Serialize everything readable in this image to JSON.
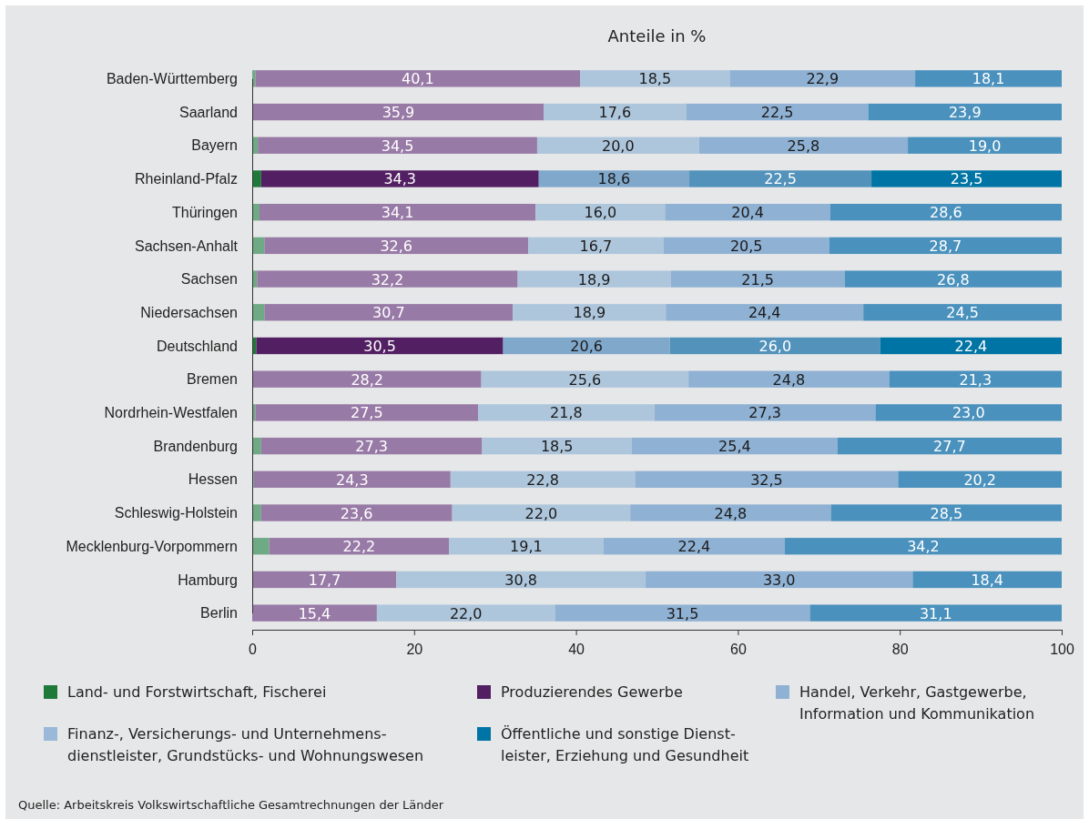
{
  "chart_data": {
    "type": "bar",
    "orientation": "horizontal",
    "stacked": true,
    "title": "Anteile in %",
    "categories": [
      "Baden-Württemberg",
      "Saarland",
      "Bayern",
      "Rheinland-Pfalz",
      "Thüringen",
      "Sachsen-Anhalt",
      "Sachsen",
      "Niedersachsen",
      "Deutschland",
      "Bremen",
      "Nordrhein-Westfalen",
      "Brandenburg",
      "Hessen",
      "Schleswig-Holstein",
      "Mecklenburg-Vorpommern",
      "Hamburg",
      "Berlin"
    ],
    "series": [
      {
        "name": "Land- und Forstwirtschaft, Fischerei",
        "color": "#1f7a3a",
        "colors": [
          "#6eaa84",
          "#6eaa84",
          "#6eaa84",
          "#1f7a3a",
          "#6eaa84",
          "#6eaa84",
          "#6eaa84",
          "#6eaa84",
          "#1f7a3a",
          "#6eaa84",
          "#6eaa84",
          "#6eaa84",
          "#6eaa84",
          "#6eaa84",
          "#6eaa84",
          "#6eaa84",
          "#6eaa84"
        ],
        "values": [
          0.4,
          0.1,
          0.7,
          1.1,
          0.9,
          1.5,
          0.6,
          1.5,
          0.5,
          0.1,
          0.4,
          1.1,
          0.2,
          1.1,
          2.1,
          0.1,
          0.0
        ],
        "value_labels": [
          null,
          null,
          null,
          null,
          null,
          null,
          null,
          null,
          null,
          null,
          null,
          null,
          null,
          null,
          null,
          null,
          null
        ]
      },
      {
        "name": "Produzierendes Gewerbe",
        "color": "#521f63",
        "colors": [
          "#987aa6",
          "#987aa6",
          "#987aa6",
          "#521f63",
          "#987aa6",
          "#987aa6",
          "#987aa6",
          "#987aa6",
          "#521f63",
          "#987aa6",
          "#987aa6",
          "#987aa6",
          "#987aa6",
          "#987aa6",
          "#987aa6",
          "#987aa6",
          "#987aa6"
        ],
        "values": [
          40.1,
          35.9,
          34.5,
          34.3,
          34.1,
          32.6,
          32.2,
          30.7,
          30.5,
          28.2,
          27.5,
          27.3,
          24.3,
          23.6,
          22.2,
          17.7,
          15.4
        ],
        "value_labels": [
          "40,1",
          "35,9",
          "34,5",
          "34,3",
          "34,1",
          "32,6",
          "32,2",
          "30,7",
          "30,5",
          "28,2",
          "27,5",
          "27,3",
          "24,3",
          "23,6",
          "22,2",
          "17,7",
          "15,4"
        ]
      },
      {
        "name": "Handel, Verkehr, Gastgewerbe,\nInformation und Kommunikation",
        "color": "#8fb2d4",
        "colors": [
          "#aec6dc",
          "#aec6dc",
          "#aec6dc",
          "#80a8cb",
          "#aec6dc",
          "#aec6dc",
          "#aec6dc",
          "#aec6dc",
          "#80a8cb",
          "#aec6dc",
          "#aec6dc",
          "#aec6dc",
          "#aec6dc",
          "#aec6dc",
          "#aec6dc",
          "#aec6dc",
          "#aec6dc"
        ],
        "values": [
          18.5,
          17.6,
          20.0,
          18.6,
          16.0,
          16.7,
          18.9,
          18.9,
          20.6,
          25.6,
          21.8,
          18.5,
          22.8,
          22.0,
          19.1,
          30.8,
          22.0
        ],
        "value_labels": [
          "18,5",
          "17,6",
          "20,0",
          "18,6",
          "16,0",
          "16,7",
          "18,9",
          "18,9",
          "20,6",
          "25,6",
          "21,8",
          "18,5",
          "22,8",
          "22,0",
          "19,1",
          "30,8",
          "22,0"
        ]
      },
      {
        "name": "Finanz-, Versicherungs- und Unternehmens-\ndienstleister, Grundstücks- und Wohnungswesen",
        "color": "#9ab9d8",
        "colors": [
          "#8fb1d3",
          "#8fb1d3",
          "#8fb1d3",
          "#5292bb",
          "#8fb1d3",
          "#8fb1d3",
          "#8fb1d3",
          "#8fb1d3",
          "#5292bb",
          "#8fb1d3",
          "#8fb1d3",
          "#8fb1d3",
          "#8fb1d3",
          "#8fb1d3",
          "#8fb1d3",
          "#8fb1d3",
          "#8fb1d3"
        ],
        "values": [
          22.9,
          22.5,
          25.8,
          22.5,
          20.4,
          20.5,
          21.5,
          24.4,
          26.0,
          24.8,
          27.3,
          25.4,
          32.5,
          24.8,
          22.4,
          33.0,
          31.5
        ],
        "value_labels": [
          "22,9",
          "22,5",
          "25,8",
          "22,5",
          "20,4",
          "20,5",
          "21,5",
          "24,4",
          "26,0",
          "24,8",
          "27,3",
          "25,4",
          "32,5",
          "24,8",
          "22,4",
          "33,0",
          "31,5"
        ]
      },
      {
        "name": "Öffentliche und sonstige Dienst-\nleister, Erziehung und Gesundheit",
        "color": "#0075a5",
        "colors": [
          "#4a91bd",
          "#4a91bd",
          "#4a91bd",
          "#0075a5",
          "#4a91bd",
          "#4a91bd",
          "#4a91bd",
          "#4a91bd",
          "#0075a5",
          "#4a91bd",
          "#4a91bd",
          "#4a91bd",
          "#4a91bd",
          "#4a91bd",
          "#4a91bd",
          "#4a91bd",
          "#4a91bd"
        ],
        "values": [
          18.1,
          23.9,
          19.0,
          23.5,
          28.6,
          28.7,
          26.8,
          24.5,
          22.4,
          21.3,
          23.0,
          27.7,
          20.2,
          28.5,
          34.2,
          18.4,
          31.1
        ],
        "value_labels": [
          "18,1",
          "23,9",
          "19,0",
          "23,5",
          "28,6",
          "28,7",
          "26,8",
          "24,5",
          "22,4",
          "21,3",
          "23,0",
          "27,7",
          "20,2",
          "28,5",
          "34,2",
          "18,4",
          "31,1"
        ]
      }
    ],
    "xlim": [
      0,
      100
    ],
    "xticks": [
      0,
      20,
      40,
      60,
      80,
      100
    ],
    "legend": "bottom",
    "annotations": [
      "Quelle: Arbeitskreis Volkswirtschaftliche Gesamtrechnungen der Länder"
    ]
  }
}
